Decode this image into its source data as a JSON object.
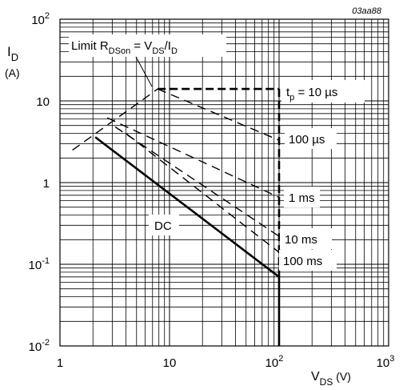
{
  "chart_data": {
    "type": "line",
    "figure_id": "03aa88",
    "xlabel": {
      "main": "V",
      "sub": "DS",
      "unit": " (V)"
    },
    "ylabel": {
      "main": "I",
      "sub": "D",
      "unit": "(A)"
    },
    "xscale": "log",
    "yscale": "log",
    "xlim": [
      1,
      1000
    ],
    "ylim": [
      0.01,
      100
    ],
    "grid": true,
    "x_ticks": [
      {
        "label": "1"
      },
      {
        "label": "10"
      },
      {
        "base": "10",
        "exp": "2"
      },
      {
        "base": "10",
        "exp": "3"
      }
    ],
    "y_ticks": [
      {
        "base": "10",
        "exp": "2"
      },
      {
        "label": "10"
      },
      {
        "label": "1"
      },
      {
        "base": "10",
        "exp": "-1"
      },
      {
        "base": "10",
        "exp": "-2"
      }
    ],
    "series": [
      {
        "x": [
          1.3,
          7.8
        ],
        "y": [
          2.5,
          14
        ],
        "style": "dashed",
        "weight": "normal"
      },
      {
        "x": [
          7.8,
          100
        ],
        "y": [
          14,
          14
        ],
        "style": "dashed",
        "weight": "bold"
      },
      {
        "x": [
          7.8,
          100
        ],
        "y": [
          14,
          3.3
        ],
        "style": "dashed",
        "weight": "normal"
      },
      {
        "x": [
          2.7,
          100
        ],
        "y": [
          6.2,
          0.66
        ],
        "style": "dashed",
        "weight": "normal"
      },
      {
        "x": [
          3.2,
          100
        ],
        "y": [
          4.8,
          0.22
        ],
        "style": "dashed",
        "weight": "normal"
      },
      {
        "x": [
          4.0,
          100
        ],
        "y": [
          4.0,
          0.14
        ],
        "style": "dashed",
        "weight": "normal"
      },
      {
        "x": [
          100,
          100
        ],
        "y": [
          14,
          0.07
        ],
        "style": "dashed",
        "weight": "bold"
      },
      {
        "x": [
          2.1,
          100
        ],
        "y": [
          3.6,
          0.07
        ],
        "style": "solid",
        "weight": "bold"
      },
      {
        "x": [
          100,
          100
        ],
        "y": [
          0.07,
          0.01
        ],
        "style": "solid",
        "weight": "bold"
      }
    ],
    "annotations": [
      {
        "main": "t",
        "sub": "p",
        "rest": " = 10 µs"
      },
      {
        "main": "100 µs"
      },
      {
        "main": "1 ms"
      },
      {
        "main": "10 ms"
      },
      {
        "main": "100 ms"
      },
      {
        "main": "DC"
      }
    ],
    "limit_label": {
      "main": "Limit R",
      "sub1": "DSon",
      "mid": " = V",
      "sub2": "DS",
      "mid2": "/I",
      "sub3": "D"
    }
  }
}
